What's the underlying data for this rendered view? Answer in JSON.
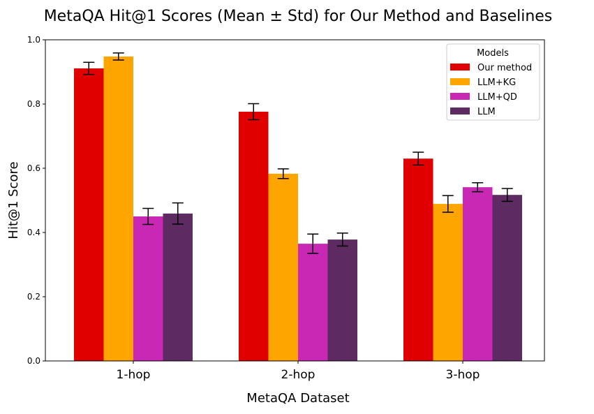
{
  "chart_data": {
    "type": "bar",
    "title": "MetaQA Hit@1 Scores (Mean ± Std) for Our Method and Baselines",
    "xlabel": "MetaQA Dataset",
    "ylabel": "Hit@1 Score",
    "ylim": [
      0,
      1.0
    ],
    "yticks": [
      "0.0",
      "0.2",
      "0.4",
      "0.6",
      "0.8",
      "1.0"
    ],
    "categories": [
      "1-hop",
      "2-hop",
      "3-hop"
    ],
    "legend": {
      "title": "Models",
      "placement": "top-right"
    },
    "series": [
      {
        "name": "Our method",
        "color": "#e00000",
        "values": [
          0.911,
          0.776,
          0.63
        ],
        "std": [
          0.019,
          0.025,
          0.02
        ]
      },
      {
        "name": "LLM+KG",
        "color": "#ffa500",
        "values": [
          0.948,
          0.583,
          0.489
        ],
        "std": [
          0.011,
          0.015,
          0.026
        ]
      },
      {
        "name": "LLM+QD",
        "color": "#c828b4",
        "values": [
          0.45,
          0.365,
          0.541
        ],
        "std": [
          0.025,
          0.03,
          0.014
        ]
      },
      {
        "name": "LLM",
        "color": "#5e2a62",
        "values": [
          0.459,
          0.378,
          0.517
        ],
        "std": [
          0.033,
          0.02,
          0.02
        ]
      }
    ]
  }
}
